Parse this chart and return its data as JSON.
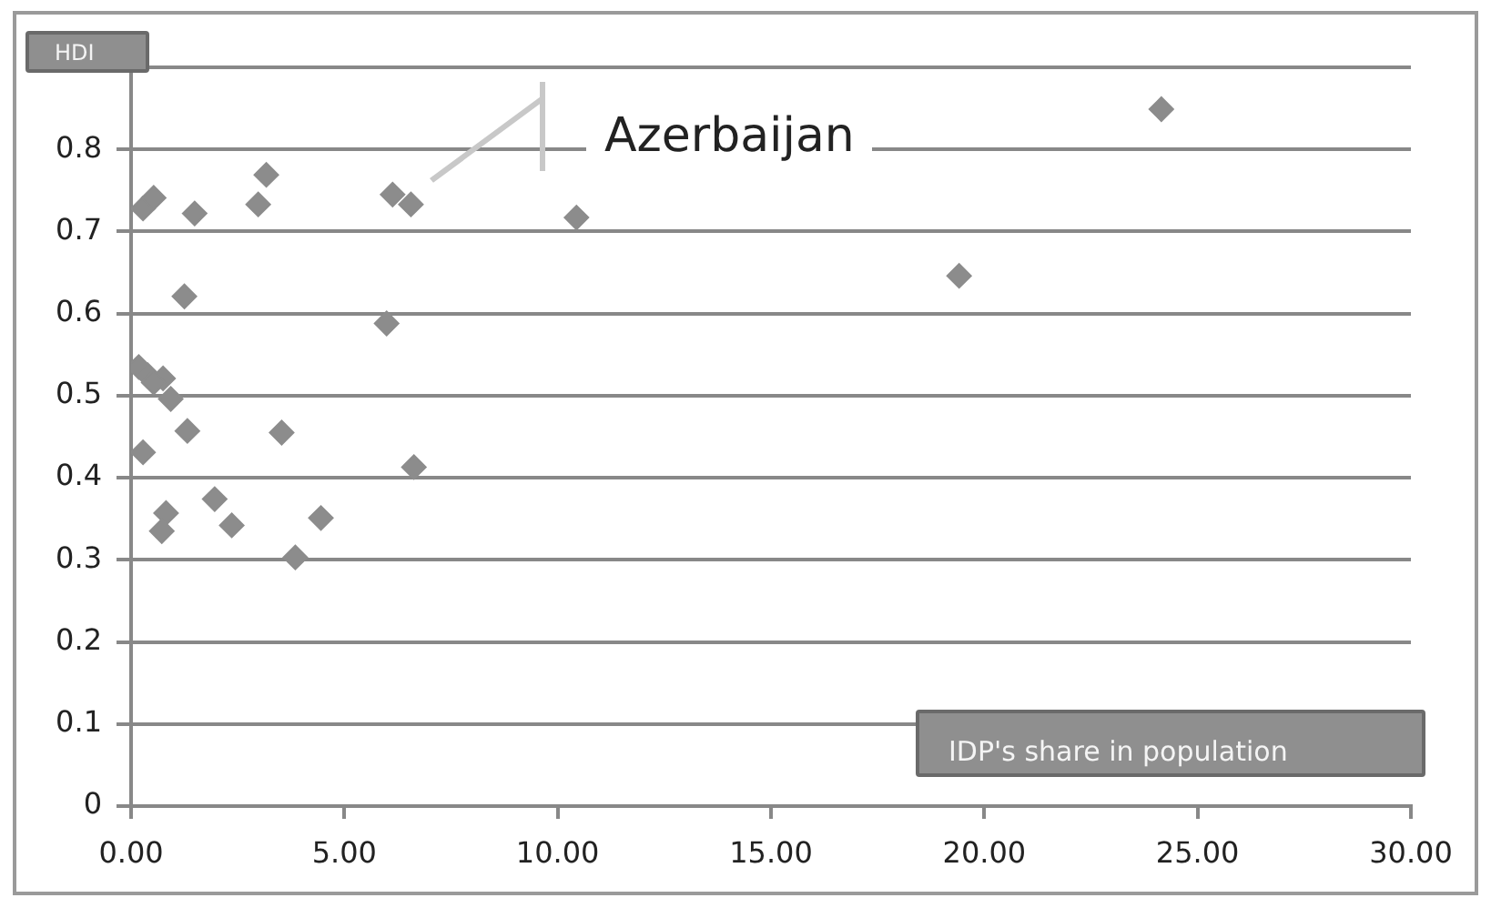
{
  "chart_data": {
    "type": "scatter",
    "xlabel": "IDP's share in population",
    "ylabel": "HDI",
    "x": [
      0.28,
      0.53,
      1.49,
      2.98,
      3.17,
      6.13,
      6.56,
      10.44,
      1.25,
      5.99,
      0.18,
      0.39,
      0.75,
      0.53,
      0.93,
      1.32,
      3.53,
      0.28,
      6.63,
      0.82,
      0.72,
      1.96,
      2.36,
      4.45,
      3.85,
      24.15,
      19.41
    ],
    "series": [
      {
        "color": "#8c8c8c",
        "values": [
          0.728,
          0.741,
          0.722,
          0.733,
          0.769,
          0.745,
          0.733,
          0.717,
          0.621,
          0.588,
          0.535,
          0.525,
          0.521,
          0.516,
          0.496,
          0.457,
          0.455,
          0.431,
          0.413,
          0.357,
          0.335,
          0.374,
          0.342,
          0.351,
          0.303,
          0.849,
          0.646
        ]
      }
    ],
    "xlim": [
      0,
      30
    ],
    "xticks": [
      {
        "value": 0,
        "label": "0.00"
      },
      {
        "value": 5,
        "label": "5.00"
      },
      {
        "value": 10,
        "label": "10.00"
      },
      {
        "value": 15,
        "label": "15.00"
      },
      {
        "value": 20,
        "label": "20.00"
      },
      {
        "value": 25,
        "label": "25.00"
      },
      {
        "value": 30,
        "label": "30.00"
      }
    ],
    "ylim": [
      0,
      0.9
    ],
    "yticks": [
      0,
      0.1,
      0.2,
      0.3,
      0.4,
      0.5,
      0.6,
      0.7,
      0.8,
      {
        "value": 0.9,
        "label": null
      }
    ],
    "grid": "y",
    "marker": "diamond",
    "annotations": [
      "Azerbaijan"
    ]
  }
}
